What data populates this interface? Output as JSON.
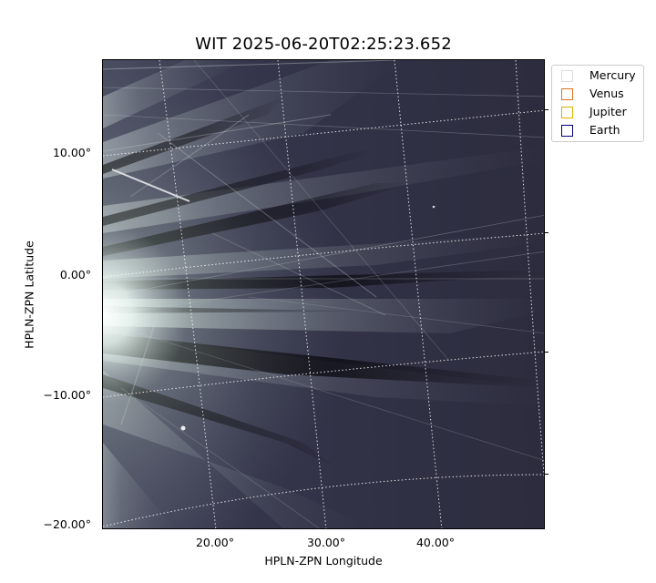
{
  "plot": {
    "title": "WIT 2025-06-20T02:25:23.652",
    "xlabel": "HPLN-ZPN Longitude",
    "ylabel": "HPLN-ZPN Latitude",
    "y_ticks": [
      "10.00°",
      "0.00°",
      "−10.00°",
      "−20.00°"
    ],
    "x_ticks": [
      "20.00°",
      "30.00°",
      "40.00°"
    ]
  },
  "legend": {
    "items": [
      {
        "label": "Mercury",
        "color": "#dddddd"
      },
      {
        "label": "Venus",
        "color": "#e07020"
      },
      {
        "label": "Jupiter",
        "color": "#e0b000"
      },
      {
        "label": "Earth",
        "color": "#000080"
      }
    ]
  },
  "colors": {
    "background": "#2a2a3c",
    "streamer": "#e6f4ee",
    "grid": "#ffffff"
  }
}
